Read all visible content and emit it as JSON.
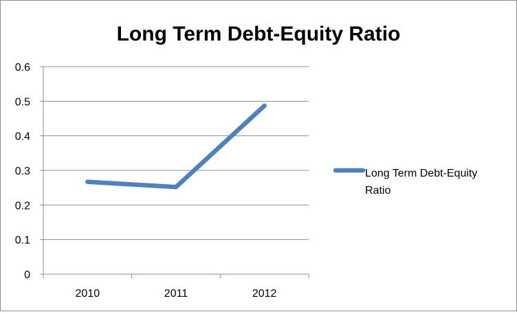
{
  "chart_data": {
    "type": "line",
    "title": "Long Term Debt-Equity Ratio",
    "xlabel": "",
    "ylabel": "",
    "categories": [
      "2010",
      "2011",
      "2012"
    ],
    "series": [
      {
        "name": "Long Term Debt-Equity Ratio",
        "values": [
          0.267,
          0.252,
          0.487
        ],
        "color": "#4f81bd"
      }
    ],
    "ylim": [
      0,
      0.6
    ],
    "yticks": [
      "0",
      "0.1",
      "0.2",
      "0.3",
      "0.4",
      "0.5",
      "0.6"
    ],
    "grid": true,
    "legend_position": "right",
    "legend_lines": [
      "Long Term Debt-Equity",
      "Ratio"
    ]
  }
}
